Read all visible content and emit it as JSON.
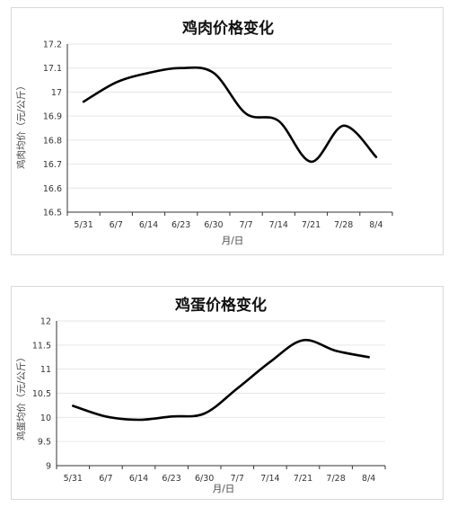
{
  "chart_data": [
    {
      "type": "line",
      "title": "鸡肉价格变化",
      "xlabel": "月/日",
      "ylabel": "鸡肉均价（元/公斤）",
      "categories": [
        "5/31",
        "6/7",
        "6/14",
        "6/23",
        "6/30",
        "7/7",
        "7/14",
        "7/21",
        "7/28",
        "8/4"
      ],
      "ylim": [
        16.5,
        17.2
      ],
      "yticks": [
        "16.5",
        "16.6",
        "16.7",
        "16.8",
        "16.9",
        "17",
        "17.1",
        "17.2"
      ],
      "grid": true,
      "series": [
        {
          "values": [
            16.96,
            17.04,
            17.08,
            17.1,
            17.08,
            16.91,
            16.88,
            16.71,
            16.86,
            16.73
          ]
        }
      ]
    },
    {
      "type": "line",
      "title": "鸡蛋价格变化",
      "xlabel": "月/日",
      "ylabel": "鸡蛋均价（元/公斤）",
      "categories": [
        "5/31",
        "6/7",
        "6/14",
        "6/23",
        "6/30",
        "7/7",
        "7/14",
        "7/21",
        "7/28",
        "8/4"
      ],
      "ylim": [
        9,
        12
      ],
      "yticks": [
        "9",
        "9.5",
        "10",
        "10.5",
        "11",
        "11.5",
        "12"
      ],
      "grid": true,
      "series": [
        {
          "values": [
            10.24,
            10.02,
            9.95,
            10.02,
            10.08,
            10.6,
            11.15,
            11.6,
            11.38,
            11.25
          ]
        }
      ]
    }
  ]
}
